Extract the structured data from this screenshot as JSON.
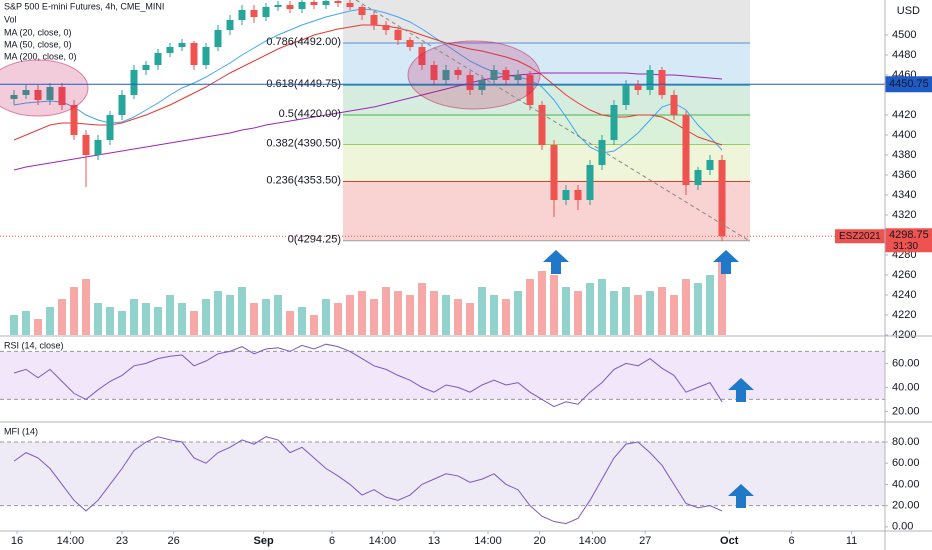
{
  "chart_data": [
    {
      "type": "candlestick",
      "title": "S&P 500 E-mini Futures, 4h, CME_MINI",
      "currency": "USD",
      "ylim": [
        4200,
        4535
      ],
      "yticks": [
        4200,
        4220,
        4240,
        4260,
        4280,
        4320,
        4340,
        4360,
        4380,
        4400,
        4420,
        4460,
        4480,
        4500
      ],
      "xticks": [
        {
          "value": 0.25,
          "label": "16"
        },
        {
          "value": 4.7,
          "label": "14:00"
        },
        {
          "value": 9,
          "label": "23"
        },
        {
          "value": 13.3,
          "label": "26"
        },
        {
          "value": 20.8,
          "label": "Sep"
        },
        {
          "value": 26.5,
          "label": "6"
        },
        {
          "value": 30.7,
          "label": "14:00"
        },
        {
          "value": 35,
          "label": "13"
        },
        {
          "value": 39.5,
          "label": "14:00"
        },
        {
          "value": 43.8,
          "label": "20"
        },
        {
          "value": 48.2,
          "label": "14:00"
        },
        {
          "value": 52.6,
          "label": "27"
        },
        {
          "value": 59.6,
          "label": "Oct"
        },
        {
          "value": 64.8,
          "label": "6"
        },
        {
          "value": 69.8,
          "label": "11"
        }
      ],
      "up_color": "#26a69a",
      "down_color": "#ef5350",
      "open": [
        4436,
        4440,
        4445,
        4435,
        4448,
        4430,
        4400,
        4380,
        4395,
        4420,
        4440,
        4465,
        4470,
        4482,
        4488,
        4492,
        4470,
        4488,
        4505,
        4515,
        4525,
        4518,
        4528,
        4530,
        4526,
        4533,
        4530,
        4534,
        4532,
        4528,
        4520,
        4510,
        4505,
        4495,
        4488,
        4470,
        4455,
        4465,
        4460,
        4445,
        4455,
        4465,
        4455,
        4460,
        4430,
        4390,
        4335,
        4345,
        4335,
        4370,
        4395,
        4430,
        4450,
        4445,
        4465,
        4440,
        4420,
        4350,
        4365,
        4375
      ],
      "high": [
        4445,
        4450,
        4450,
        4452,
        4452,
        4435,
        4405,
        4400,
        4424,
        4445,
        4470,
        4474,
        4486,
        4492,
        4496,
        4494,
        4492,
        4510,
        4520,
        4530,
        4530,
        4532,
        4534,
        4534,
        4535,
        4535,
        4535,
        4535,
        4535,
        4530,
        4524,
        4514,
        4508,
        4498,
        4492,
        4474,
        4470,
        4468,
        4464,
        4460,
        4470,
        4468,
        4465,
        4464,
        4434,
        4395,
        4350,
        4350,
        4375,
        4400,
        4435,
        4455,
        4455,
        4470,
        4468,
        4445,
        4424,
        4368,
        4380,
        4380
      ],
      "low": [
        4430,
        4436,
        4430,
        4430,
        4425,
        4395,
        4348,
        4375,
        4390,
        4415,
        4436,
        4460,
        4465,
        4478,
        4484,
        4465,
        4466,
        4484,
        4500,
        4510,
        4512,
        4514,
        4524,
        4522,
        4522,
        4526,
        4526,
        4528,
        4525,
        4515,
        4505,
        4500,
        4490,
        4484,
        4465,
        4450,
        4450,
        4455,
        4440,
        4440,
        4450,
        4450,
        4450,
        4425,
        4385,
        4318,
        4330,
        4325,
        4330,
        4365,
        4390,
        4425,
        4440,
        4440,
        4436,
        4415,
        4340,
        4345,
        4360,
        4294.25
      ],
      "close": [
        4440,
        4445,
        4435,
        4448,
        4430,
        4400,
        4380,
        4395,
        4420,
        4440,
        4465,
        4470,
        4482,
        4488,
        4492,
        4470,
        4488,
        4505,
        4515,
        4525,
        4518,
        4528,
        4530,
        4526,
        4533,
        4530,
        4534,
        4532,
        4528,
        4520,
        4510,
        4505,
        4495,
        4488,
        4470,
        4455,
        4465,
        4460,
        4445,
        4455,
        4465,
        4455,
        4460,
        4430,
        4390,
        4335,
        4345,
        4335,
        4370,
        4395,
        4430,
        4450,
        4445,
        4465,
        4440,
        4420,
        4350,
        4365,
        4375,
        4298.75
      ],
      "volume": {
        "name": "Vol",
        "values": [
          25,
          30,
          20,
          35,
          45,
          60,
          70,
          40,
          35,
          30,
          45,
          40,
          35,
          50,
          40,
          30,
          45,
          55,
          50,
          60,
          40,
          45,
          50,
          30,
          35,
          25,
          45,
          40,
          50,
          55,
          45,
          60,
          55,
          50,
          65,
          55,
          50,
          45,
          40,
          60,
          50,
          45,
          55,
          70,
          80,
          75,
          60,
          55,
          65,
          70,
          55,
          60,
          50,
          55,
          60,
          50,
          70,
          65,
          75,
          95
        ]
      },
      "ma": [
        {
          "name": "MA (20, close, 0)",
          "color": "#42a5f5",
          "values": [
            4430,
            4432,
            4433,
            4434,
            4433,
            4428,
            4420,
            4415,
            4412,
            4413,
            4418,
            4425,
            4432,
            4440,
            4447,
            4452,
            4458,
            4465,
            4472,
            4480,
            4487,
            4494,
            4500,
            4505,
            4510,
            4514,
            4518,
            4521,
            4524,
            4526,
            4525,
            4522,
            4518,
            4513,
            4506,
            4498,
            4490,
            4482,
            4474,
            4468,
            4463,
            4460,
            4458,
            4455,
            4448,
            4435,
            4418,
            4400,
            4388,
            4382,
            4384,
            4392,
            4402,
            4415,
            4428,
            4432,
            4425,
            4410,
            4398,
            4385
          ]
        },
        {
          "name": "MA (50, close, 0)",
          "color": "#e53935",
          "values": [
            4395,
            4400,
            4405,
            4410,
            4412,
            4412,
            4411,
            4410,
            4410,
            4412,
            4416,
            4420,
            4425,
            4430,
            4436,
            4442,
            4448,
            4455,
            4462,
            4468,
            4474,
            4480,
            4486,
            4491,
            4495,
            4500,
            4503,
            4506,
            4508,
            4510,
            4510,
            4509,
            4507,
            4504,
            4500,
            4496,
            4492,
            4489,
            4486,
            4484,
            4481,
            4478,
            4474,
            4468,
            4460,
            4450,
            4440,
            4432,
            4425,
            4420,
            4418,
            4418,
            4420,
            4420,
            4418,
            4412,
            4405,
            4398,
            4394,
            4390
          ]
        },
        {
          "name": "MA (200, close, 0)",
          "color": "#9c27b0",
          "values": [
            4365,
            4368,
            4370,
            4372,
            4374,
            4376,
            4378,
            4380,
            4382,
            4384,
            4386,
            4388,
            4390,
            4392,
            4394,
            4396,
            4398,
            4400,
            4402,
            4405,
            4407,
            4410,
            4412,
            4414,
            4416,
            4418,
            4420,
            4422,
            4424,
            4426,
            4428,
            4431,
            4434,
            4437,
            4440,
            4443,
            4446,
            4449,
            4452,
            4455,
            4457,
            4459,
            4460,
            4461,
            4462,
            4462,
            4462,
            4462,
            4462,
            4462,
            4462,
            4462,
            4461,
            4461,
            4460,
            4460,
            4459,
            4458,
            4457,
            4456
          ]
        }
      ],
      "fib": [
        {
          "label": "0(4294.25)",
          "price": 4294.25,
          "color": "#9e9e9e",
          "fill": "#f9d2d2"
        },
        {
          "label": "0.236(4353.50)",
          "price": 4353.5,
          "color": "#e53935",
          "fill": "#eef5d8"
        },
        {
          "label": "0.382(4390.50)",
          "price": 4390.5,
          "color": "#9ccc65",
          "fill": "#d9f1d9"
        },
        {
          "label": "0.5(4420.00)",
          "price": 4420,
          "color": "#4caf50",
          "fill": "#d5ecdf"
        },
        {
          "label": "0.618(4449.75)",
          "price": 4449.75,
          "color": "#26a69a",
          "fill": "#d5eaf6"
        },
        {
          "label": "0.786(4492.00)",
          "price": 4492,
          "color": "#5c8ed6",
          "fill": "#e6e6e6"
        }
      ],
      "hline": {
        "price": 4450.75,
        "label": "4450.75",
        "color": "#1e5bc6"
      },
      "last": {
        "symbol": "ESZ2021",
        "price": 4298.75,
        "label": "4298.75",
        "countdown": "31:30",
        "color": "#ef5350"
      }
    },
    {
      "type": "oscillator",
      "title": "RSI (14, close)",
      "color": "#7e57c2",
      "ylim": [
        12,
        82
      ],
      "band": [
        30,
        70
      ],
      "band_color": "#f2e6fb",
      "yticks": [
        {
          "value": 20,
          "label": "20.00"
        },
        {
          "value": 40,
          "label": "40.00"
        },
        {
          "value": 60,
          "label": "60.00"
        }
      ],
      "values": [
        52,
        55,
        48,
        55,
        45,
        35,
        30,
        38,
        45,
        50,
        58,
        60,
        64,
        66,
        67,
        58,
        62,
        68,
        70,
        74,
        68,
        72,
        73,
        70,
        75,
        72,
        76,
        74,
        70,
        64,
        58,
        55,
        50,
        46,
        40,
        36,
        42,
        40,
        36,
        42,
        46,
        42,
        44,
        36,
        30,
        24,
        28,
        26,
        36,
        44,
        55,
        60,
        58,
        64,
        56,
        50,
        36,
        40,
        44,
        28
      ]
    },
    {
      "type": "oscillator",
      "title": "MFI (14)",
      "color": "#7e57c2",
      "ylim": [
        -3,
        97
      ],
      "band": [
        20,
        80
      ],
      "band_color": "#eeebf7",
      "yticks": [
        {
          "value": 0,
          "label": "0.00"
        },
        {
          "value": 20,
          "label": "20.00"
        },
        {
          "value": 40,
          "label": "40.00"
        },
        {
          "value": 60,
          "label": "60.00"
        },
        {
          "value": 80,
          "label": "80.00"
        }
      ],
      "values": [
        62,
        70,
        65,
        55,
        40,
        25,
        15,
        25,
        40,
        55,
        72,
        80,
        85,
        82,
        80,
        65,
        60,
        70,
        75,
        82,
        78,
        85,
        82,
        70,
        75,
        65,
        55,
        48,
        40,
        30,
        35,
        28,
        25,
        30,
        40,
        45,
        50,
        48,
        42,
        45,
        50,
        40,
        35,
        20,
        10,
        5,
        3,
        8,
        25,
        45,
        65,
        78,
        80,
        70,
        58,
        40,
        22,
        18,
        20,
        15
      ]
    }
  ]
}
